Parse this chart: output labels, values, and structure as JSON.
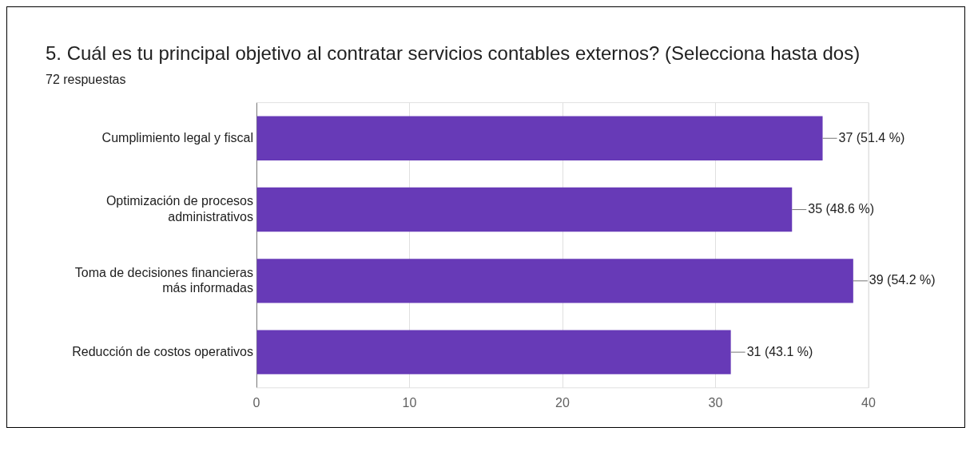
{
  "chart_data": {
    "type": "bar",
    "orientation": "horizontal",
    "title": "5. Cuál es tu principal objetivo al contratar servicios contables externos? (Selecciona hasta dos)",
    "subtitle": "72 respuestas",
    "categories": [
      "Cumplimiento legal y fiscal",
      "Optimización de procesos administrativos",
      "Toma de decisiones financieras más informadas",
      "Reducción de costos operativos"
    ],
    "values": [
      37,
      35,
      39,
      31
    ],
    "value_labels": [
      "37 (51.4 %)",
      "35 (48.6 %)",
      "39 (54.2 %)",
      "31 (43.1 %)"
    ],
    "color": "#673ab7",
    "xlim": [
      0,
      40
    ],
    "xticks": [
      0,
      10,
      20,
      30,
      40
    ],
    "grid": "x",
    "legend": false
  }
}
